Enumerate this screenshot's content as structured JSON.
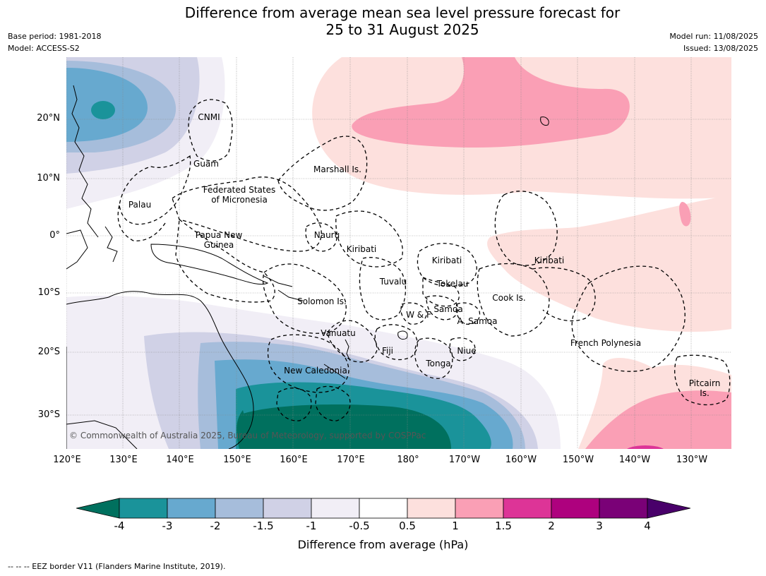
{
  "header": {
    "title_line1": "Difference from average mean sea level pressure forecast for",
    "title_line2": "25 to 31 August 2025",
    "base_period": "Base period: 1981-2018",
    "model": "Model: ACCESS-S2",
    "model_run": "Model run: 11/08/2025",
    "issued": "Issued: 13/08/2025"
  },
  "map": {
    "lat_ticks": [
      "20°N",
      "10°N",
      "0°",
      "10°S",
      "20°S",
      "30°S"
    ],
    "lon_ticks": [
      "120°E",
      "130°E",
      "140°E",
      "150°E",
      "160°E",
      "170°E",
      "180°",
      "170°W",
      "160°W",
      "150°W",
      "140°W",
      "130°W"
    ],
    "regions": {
      "cnmi": "CNMI",
      "guam": "Guam",
      "marshall": "Marshall Is.",
      "fsm1": "Federated States",
      "fsm2": "of Micronesia",
      "palau": "Palau",
      "png1": "Papua New",
      "png2": "Guinea",
      "nauru": "Nauru",
      "kiribati_w": "Kiribati",
      "kiribati_c": "Kiribati",
      "kiribati_e": "Kiribati",
      "tuvalu": "Tuvalu",
      "tokelau": "Tokelau",
      "solomon": "Solomon Is.",
      "wf": "W & F",
      "samoa": "Samoa",
      "asamoa": "A. Samoa",
      "cook": "Cook Is.",
      "vanuatu": "Vanuatu",
      "fiji": "Fiji",
      "niue": "Niue",
      "tonga": "Tonga",
      "newcal": "New Caledonia",
      "fp": "French Polynesia",
      "pitcairn1": "Pitcairn",
      "pitcairn2": "Is."
    },
    "copyright": "© Commonwealth of Australia 2025, Bureau of Meteorology, supported by COSPPac"
  },
  "colorbar": {
    "title": "Difference from average (hPa)",
    "labels": [
      "-4",
      "-3",
      "-2",
      "-1.5",
      "-1",
      "-0.5",
      "0.5",
      "1",
      "1.5",
      "2",
      "3",
      "4"
    ],
    "colors": {
      "below_min": "#00705e",
      "bins": [
        "#1a939a",
        "#67a9cf",
        "#a6bddb",
        "#d0d1e6",
        "#f1eef6",
        "#ffffff",
        "#fde0dd",
        "#fa9fb5",
        "#dd3497",
        "#ae017e",
        "#7a0177"
      ],
      "above_max": "#49006a"
    }
  },
  "legend_note": "--  --  -- EEZ border V11 (Flanders Marine Institute, 2019)."
}
